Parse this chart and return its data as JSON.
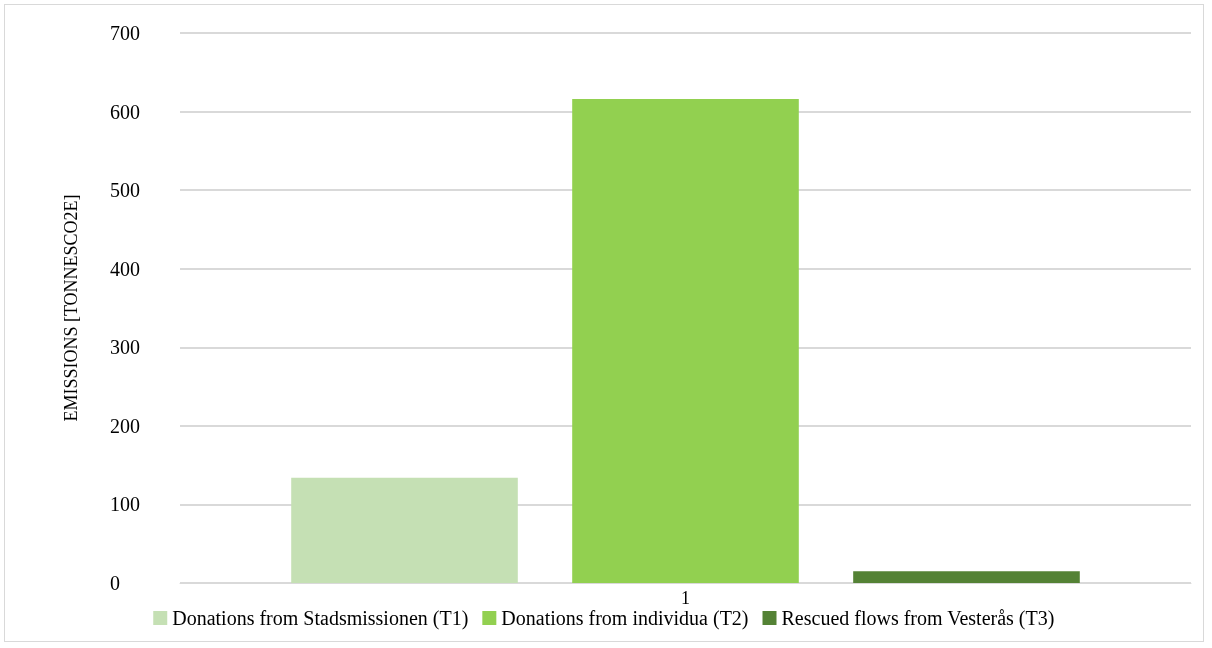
{
  "chart_data": {
    "type": "bar",
    "ylabel": "EMISSIONS [TONNESCO2E]",
    "categories": [
      "1"
    ],
    "series": [
      {
        "name": "Donations from Stadsmissionen (T1)",
        "color": "#c5e0b4",
        "values": [
          134
        ]
      },
      {
        "name": "Donations from individua (T2)",
        "color": "#92d050",
        "values": [
          616
        ]
      },
      {
        "name": "Rescued flows from Vesterås (T3)",
        "color": "#548235",
        "values": [
          15
        ]
      }
    ],
    "ylim": [
      0,
      700
    ],
    "yticks": [
      0,
      100,
      200,
      300,
      400,
      500,
      600,
      700
    ],
    "grid": "y",
    "legend": "bottom"
  }
}
